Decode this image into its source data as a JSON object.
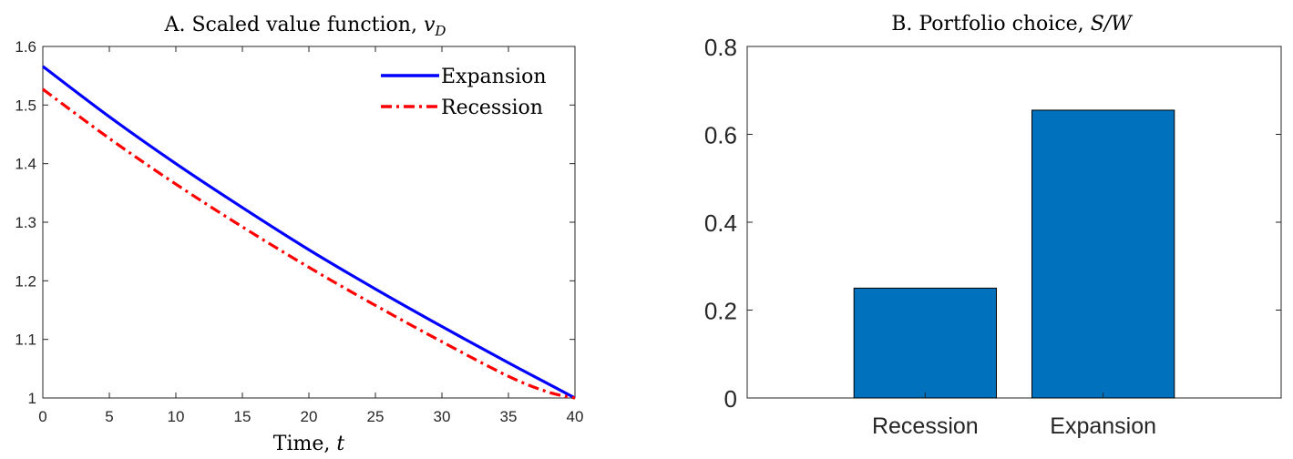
{
  "chart_data": [
    {
      "type": "line",
      "title": "A. Scaled value function,",
      "title_math": "v",
      "title_math_sub": "D",
      "xlabel": "Time,",
      "xlabel_math": "t",
      "ylabel": "",
      "xlim": [
        0,
        40
      ],
      "ylim": [
        1,
        1.6
      ],
      "xticks": [
        0,
        5,
        10,
        15,
        20,
        25,
        30,
        35,
        40
      ],
      "yticks": [
        1,
        1.1,
        1.2,
        1.3,
        1.4,
        1.5,
        1.6
      ],
      "xtick_labels": [
        "0",
        "5",
        "10",
        "15",
        "20",
        "25",
        "30",
        "35",
        "40"
      ],
      "ytick_labels": [
        "1",
        "1.1",
        "1.2",
        "1.3",
        "1.4",
        "1.5",
        "1.6"
      ],
      "grid": false,
      "legend_position": "top-right",
      "x": [
        0,
        5,
        10,
        15,
        20,
        25,
        30,
        35,
        38,
        40
      ],
      "series": [
        {
          "name": "Expansion",
          "color": "#0000ff",
          "style": "solid",
          "values": [
            1.566,
            1.48,
            1.4,
            1.325,
            1.253,
            1.186,
            1.122,
            1.06,
            1.024,
            1.0
          ]
        },
        {
          "name": "Recession",
          "color": "#ff0000",
          "style": "dashdot",
          "values": [
            1.527,
            1.443,
            1.365,
            1.292,
            1.223,
            1.158,
            1.096,
            1.037,
            1.01,
            1.0
          ]
        }
      ]
    },
    {
      "type": "bar",
      "title": "B. Portfolio choice,",
      "title_math": "S/W",
      "xlabel": "",
      "ylabel": "",
      "categories": [
        "Recession",
        "Expansion"
      ],
      "values": [
        0.25,
        0.655
      ],
      "ylim": [
        0,
        0.8
      ],
      "yticks": [
        0,
        0.2,
        0.4,
        0.6,
        0.8
      ],
      "ytick_labels": [
        "0",
        "0.2",
        "0.4",
        "0.6",
        "0.8"
      ],
      "bar_color": "#0072bd",
      "grid": false
    }
  ]
}
